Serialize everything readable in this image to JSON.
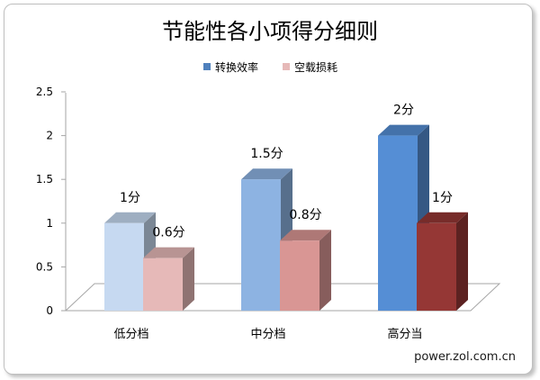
{
  "chart_data": {
    "type": "bar",
    "title": "节能性各小项得分细则",
    "categories": [
      "低分档",
      "中分档",
      "高分当"
    ],
    "series": [
      {
        "name": "转换效率",
        "values": [
          1,
          1.5,
          2
        ],
        "labels": [
          "1分",
          "1.5分",
          "2分"
        ],
        "colors": [
          "#c6d9f1",
          "#8db3e2",
          "#558ed5"
        ]
      },
      {
        "name": "空载损耗",
        "values": [
          0.6,
          0.8,
          1
        ],
        "labels": [
          "0.6分",
          "0.8分",
          "1分"
        ],
        "colors": [
          "#e6b9b8",
          "#d99694",
          "#953735"
        ]
      }
    ],
    "y_ticks": [
      "0",
      "0.5",
      "1",
      "1.5",
      "2",
      "2.5"
    ],
    "ylim": [
      0,
      2.5
    ],
    "legend_position": "top-right",
    "legend_colors": [
      "#4f81bd",
      "#e6b9b8"
    ],
    "grid": false,
    "bar_style": "3d"
  },
  "watermark": "power.zol.com.cn"
}
